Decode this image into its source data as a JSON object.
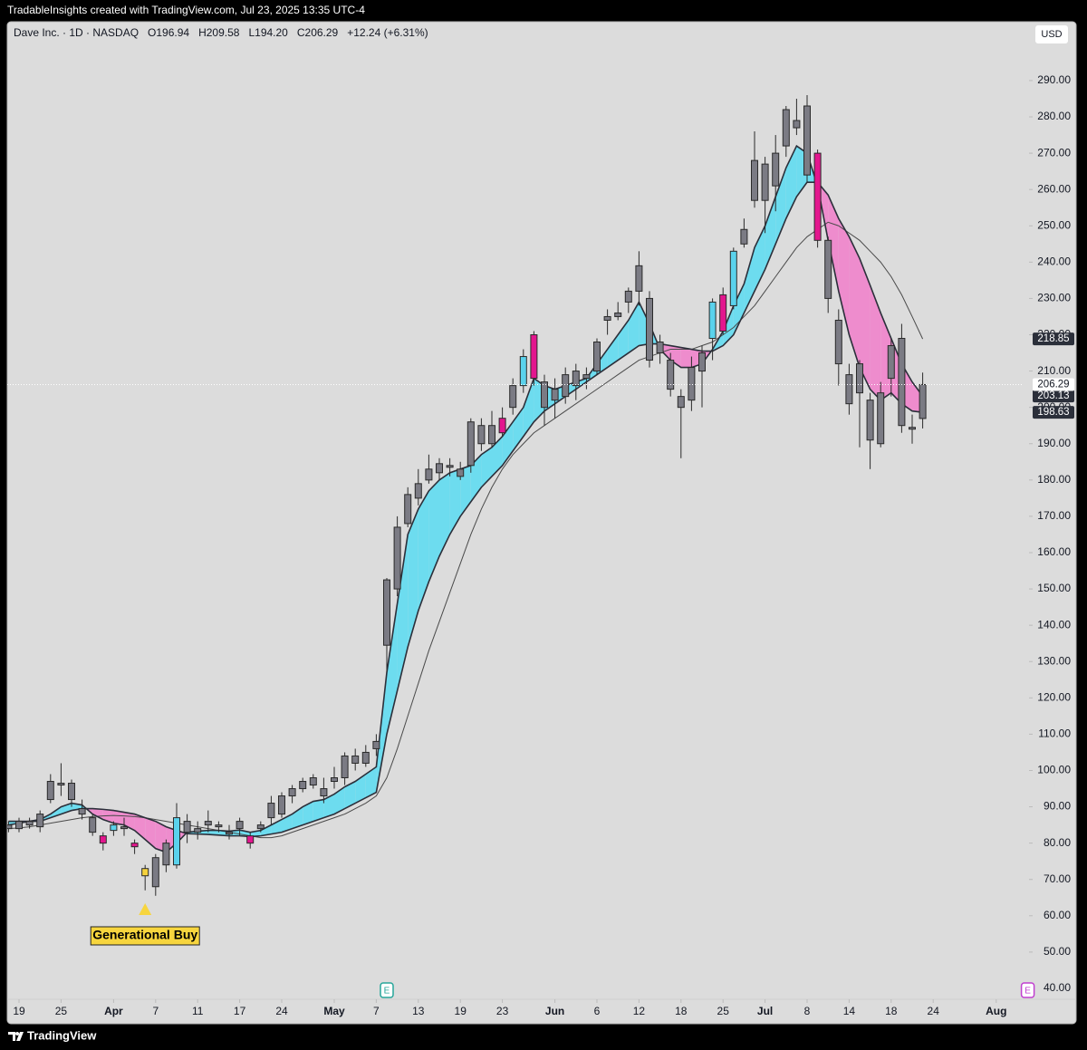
{
  "attribution": "TradableInsights created with TradingView.com, Jul 23, 2025 13:35 UTC-4",
  "brand": "TradingView",
  "currency": "USD",
  "legend": {
    "symbol": "Dave Inc. · 1D · NASDAQ",
    "items": [
      "O196.94",
      "H209.58",
      "L194.20",
      "C206.29",
      "+12.24 (+6.31%)"
    ]
  },
  "chart_data": {
    "type": "candlestick",
    "categories": [
      "Mar 18",
      "Mar 19",
      "Mar 20",
      "Mar 21",
      "Mar 24",
      "Mar 25",
      "Mar 26",
      "Mar 27",
      "Mar 28",
      "Mar 31",
      "Apr 1",
      "Apr 2",
      "Apr 3",
      "Apr 4",
      "Apr 7",
      "Apr 8",
      "Apr 9",
      "Apr 10",
      "Apr 11",
      "Apr 14",
      "Apr 15",
      "Apr 16",
      "Apr 17",
      "Apr 21",
      "Apr 22",
      "Apr 23",
      "Apr 24",
      "Apr 25",
      "Apr 28",
      "Apr 29",
      "Apr 30",
      "May 1",
      "May 2",
      "May 5",
      "May 6",
      "May 7",
      "May 8",
      "May 9",
      "May 12",
      "May 13",
      "May 14",
      "May 15",
      "May 16",
      "May 19",
      "May 20",
      "May 21",
      "May 22",
      "May 23",
      "May 27",
      "May 28",
      "May 29",
      "May 30",
      "Jun 2",
      "Jun 3",
      "Jun 4",
      "Jun 5",
      "Jun 6",
      "Jun 9",
      "Jun 10",
      "Jun 11",
      "Jun 12",
      "Jun 13",
      "Jun 16",
      "Jun 17",
      "Jun 18",
      "Jun 20",
      "Jun 23",
      "Jun 24",
      "Jun 25",
      "Jun 26",
      "Jun 27",
      "Jun 30",
      "Jul 1",
      "Jul 2",
      "Jul 3",
      "Jul 7",
      "Jul 8",
      "Jul 9",
      "Jul 10",
      "Jul 11",
      "Jul 14",
      "Jul 15",
      "Jul 16",
      "Jul 17",
      "Jul 18",
      "Jul 21",
      "Jul 22",
      "Jul 23"
    ],
    "open": [
      85,
      84,
      85,
      84.5,
      92,
      96,
      96.5,
      89.5,
      87,
      82,
      83.5,
      84,
      80,
      73,
      68,
      80,
      74,
      86,
      83,
      85,
      84.5,
      83,
      84,
      82,
      84,
      87,
      88,
      93,
      95,
      96,
      95,
      97,
      98,
      104,
      102,
      106,
      134.5,
      150,
      168,
      179,
      180,
      182,
      184,
      181,
      184,
      195,
      190,
      193,
      200,
      206,
      208,
      207,
      202,
      203,
      206,
      209,
      210,
      224,
      225,
      229,
      232,
      230,
      215,
      213,
      203,
      202,
      210,
      219,
      221,
      228,
      245,
      257,
      267,
      261,
      272,
      279,
      283,
      270,
      246,
      224,
      209,
      204,
      202,
      190,
      208,
      219,
      194.5,
      196.94
    ],
    "high": [
      86,
      87,
      87,
      89,
      99,
      102,
      97.5,
      92,
      88,
      83,
      86,
      87,
      81,
      74,
      77,
      81,
      91,
      88,
      86,
      89,
      86,
      85,
      87,
      83,
      86,
      93,
      94,
      96,
      98,
      99,
      98,
      101,
      105,
      106,
      107,
      110,
      153,
      170,
      178,
      183,
      187,
      186,
      186,
      185,
      197,
      197,
      199,
      200,
      208,
      216,
      221,
      209,
      208,
      211,
      212,
      211,
      219,
      227,
      229,
      233,
      243,
      232,
      220,
      215,
      205,
      214,
      217,
      230,
      233,
      244,
      252,
      276,
      269,
      275,
      283,
      285,
      286,
      271,
      247,
      227,
      212,
      213,
      204,
      207,
      219,
      223,
      198,
      209.58
    ],
    "low": [
      83,
      83,
      84,
      83,
      91,
      93,
      90,
      86.5,
      82,
      78,
      82,
      82,
      77,
      67,
      65.5,
      72,
      73,
      80,
      81,
      83,
      83,
      81,
      82,
      78.5,
      83,
      85,
      87,
      91,
      94,
      95,
      91,
      95,
      96,
      100,
      101,
      104,
      127,
      148,
      167,
      173,
      179,
      180,
      181,
      180,
      182,
      188,
      189,
      192,
      198,
      204,
      206,
      195,
      197,
      201,
      202,
      205,
      209,
      220,
      224,
      226,
      228,
      211,
      212,
      203,
      186,
      199,
      200,
      213,
      220,
      227,
      244,
      255,
      248,
      254,
      269,
      275,
      262,
      244,
      226,
      206,
      198,
      189,
      183,
      189,
      203,
      193,
      190,
      194.2
    ],
    "close": [
      84,
      86,
      86,
      88,
      97,
      96.5,
      92,
      88,
      83,
      80,
      85,
      84.5,
      79,
      71,
      76,
      74,
      87,
      83,
      84,
      86,
      85,
      82.5,
      86,
      80,
      85,
      91,
      93,
      95,
      97,
      98,
      93,
      98,
      104,
      102,
      105,
      108,
      152.5,
      167,
      176,
      175,
      183,
      184.5,
      183.5,
      183,
      196,
      190,
      195,
      197,
      206,
      214,
      220,
      200,
      205,
      209,
      210,
      208,
      218,
      225,
      226,
      232,
      239,
      213,
      218,
      205,
      200,
      211,
      215,
      229,
      231,
      243,
      249,
      268,
      257,
      270,
      282,
      277,
      264,
      246,
      230,
      212,
      201,
      212,
      191,
      204,
      217,
      195,
      194,
      206.29
    ],
    "colors": [
      "#7b7b84",
      "#7b7b84",
      "#7b7b84",
      "#7b7b84",
      "#7b7b84",
      "#7b7b84",
      "#7b7b84",
      "#7b7b84",
      "#7b7b84",
      "#e3168e",
      "#5ad2ec",
      "#7b7b84",
      "#e3168e",
      "#f5d23c",
      "#7b7b84",
      "#7b7b84",
      "#5ad2ec",
      "#7b7b84",
      "#7b7b84",
      "#7b7b84",
      "#7b7b84",
      "#7b7b84",
      "#7b7b84",
      "#e3168e",
      "#7b7b84",
      "#7b7b84",
      "#7b7b84",
      "#7b7b84",
      "#7b7b84",
      "#7b7b84",
      "#7b7b84",
      "#7b7b84",
      "#7b7b84",
      "#7b7b84",
      "#7b7b84",
      "#7b7b84",
      "#7b7b84",
      "#7b7b84",
      "#7b7b84",
      "#7b7b84",
      "#7b7b84",
      "#7b7b84",
      "#7b7b84",
      "#7b7b84",
      "#7b7b84",
      "#7b7b84",
      "#7b7b84",
      "#e3168e",
      "#7b7b84",
      "#5ad2ec",
      "#e3168e",
      "#7b7b84",
      "#7b7b84",
      "#7b7b84",
      "#7b7b84",
      "#7b7b84",
      "#7b7b84",
      "#7b7b84",
      "#7b7b84",
      "#7b7b84",
      "#7b7b84",
      "#7b7b84",
      "#7b7b84",
      "#7b7b84",
      "#7b7b84",
      "#7b7b84",
      "#7b7b84",
      "#5ad2ec",
      "#e3168e",
      "#5ad2ec",
      "#7b7b84",
      "#7b7b84",
      "#7b7b84",
      "#7b7b84",
      "#7b7b84",
      "#7b7b84",
      "#7b7b84",
      "#e3168e",
      "#7b7b84",
      "#7b7b84",
      "#7b7b84",
      "#7b7b84",
      "#7b7b84",
      "#7b7b84",
      "#7b7b84",
      "#7b7b84",
      "#7b7b84",
      "#7b7b84"
    ],
    "ribbon": {
      "up_color": "#6ddcef",
      "down_color": "#ee8ccd",
      "fast": [
        86,
        86,
        86,
        86.5,
        88,
        90,
        91,
        90.5,
        88,
        86.5,
        85.5,
        85,
        83.5,
        81,
        78.5,
        77.5,
        80,
        83,
        83.3,
        83.5,
        83.5,
        83.3,
        83.6,
        83,
        83.5,
        85,
        86.5,
        88,
        90,
        91.5,
        92,
        93.5,
        95.5,
        97,
        99,
        101,
        127,
        146,
        165,
        172,
        177,
        180,
        182,
        183,
        184,
        187,
        189,
        192,
        196,
        200,
        208,
        206,
        205,
        206,
        207,
        208,
        212,
        216,
        220,
        224,
        229,
        223,
        216,
        213,
        211,
        211,
        212,
        216,
        221,
        228,
        234,
        244,
        250,
        258,
        266,
        272,
        270,
        261,
        246,
        232,
        220,
        211,
        205,
        202,
        204,
        201,
        199,
        198.63
      ],
      "slow": [
        85,
        85.5,
        86,
        86,
        87,
        88,
        89,
        89.5,
        89.5,
        89.3,
        89,
        88.5,
        88,
        87,
        86,
        84.5,
        83.5,
        82.6,
        82.5,
        82.4,
        82.2,
        82,
        82,
        81.8,
        82,
        82.5,
        83,
        84,
        85,
        86,
        87,
        88,
        89.5,
        91,
        92.5,
        94,
        110,
        122,
        134,
        144,
        152,
        159,
        165,
        170,
        174,
        178,
        181,
        184,
        188,
        192,
        196,
        199,
        201,
        203,
        205,
        207,
        209,
        211,
        213,
        215,
        217,
        217.5,
        217.5,
        217,
        216.5,
        216,
        215.5,
        215.5,
        217,
        220,
        226,
        232,
        238,
        245,
        252,
        258,
        262,
        262,
        258.5,
        252,
        247,
        241,
        233.6,
        226,
        219,
        212,
        207,
        203.13
      ]
    },
    "ma": {
      "color": "#4a4a4a",
      "values": [
        84,
        84.2,
        84.5,
        85,
        85.5,
        86,
        86.5,
        87,
        87.3,
        87.5,
        87.6,
        87.5,
        87.3,
        87,
        86.5,
        86,
        85.5,
        85,
        84.5,
        84,
        83.5,
        83,
        82.5,
        82,
        81.5,
        81.5,
        82,
        83,
        84,
        85,
        86,
        87,
        88,
        89.5,
        91,
        93,
        98,
        106,
        115,
        124,
        133,
        141,
        149,
        157,
        165,
        172,
        178,
        183,
        187,
        190,
        193,
        195,
        197,
        199,
        201,
        203,
        205,
        207,
        209,
        211,
        213,
        214,
        215,
        216,
        216,
        216,
        217,
        218,
        220,
        222,
        225,
        228,
        232,
        236,
        240,
        244,
        247,
        249,
        251,
        250,
        248,
        246,
        243,
        240,
        236,
        231,
        225,
        218.85
      ]
    },
    "ylim": [
      37,
      306.2
    ],
    "yticks": [
      {
        "value": 40,
        "label": "40.00"
      },
      {
        "value": 50,
        "label": "50.00"
      },
      {
        "value": 60,
        "label": "60.00"
      },
      {
        "value": 70,
        "label": "70.00"
      },
      {
        "value": 80,
        "label": "80.00"
      },
      {
        "value": 90,
        "label": "90.00"
      },
      {
        "value": 100,
        "label": "100.00"
      },
      {
        "value": 110,
        "label": "110.00"
      },
      {
        "value": 120,
        "label": "120.00"
      },
      {
        "value": 130,
        "label": "130.00"
      },
      {
        "value": 140,
        "label": "140.00"
      },
      {
        "value": 150,
        "label": "150.00"
      },
      {
        "value": 160,
        "label": "160.00"
      },
      {
        "value": 170,
        "label": "170.00"
      },
      {
        "value": 180,
        "label": "180.00"
      },
      {
        "value": 190,
        "label": "190.00"
      },
      {
        "value": 200,
        "label": "200.00"
      },
      {
        "value": 210,
        "label": "210.00"
      },
      {
        "value": 220,
        "label": "220.00"
      },
      {
        "value": 230,
        "label": "230.00"
      },
      {
        "value": 240,
        "label": "240.00"
      },
      {
        "value": 250,
        "label": "250.00"
      },
      {
        "value": 260,
        "label": "260.00"
      },
      {
        "value": 270,
        "label": "270.00"
      },
      {
        "value": 280,
        "label": "280.00"
      },
      {
        "value": 290,
        "label": "290.00"
      }
    ],
    "xticks": [
      {
        "value": "Mar 19",
        "label": "19"
      },
      {
        "value": "Mar 25",
        "label": "25"
      },
      {
        "value": "Apr 1",
        "label": "Apr"
      },
      {
        "value": "Apr 7",
        "label": "7"
      },
      {
        "value": "Apr 11",
        "label": "11"
      },
      {
        "value": "Apr 17",
        "label": "17"
      },
      {
        "value": "Apr 24",
        "label": "24"
      },
      {
        "value": "May 1",
        "label": "May"
      },
      {
        "value": "May 7",
        "label": "7"
      },
      {
        "value": "May 13",
        "label": "13"
      },
      {
        "value": "May 19",
        "label": "19"
      },
      {
        "value": "May 23",
        "label": "23"
      },
      {
        "value": "Jun 2",
        "label": "Jun"
      },
      {
        "value": "Jun 6",
        "label": "6"
      },
      {
        "value": "Jun 12",
        "label": "12"
      },
      {
        "value": "Jun 18",
        "label": "18"
      },
      {
        "value": "Jun 25",
        "label": "25"
      },
      {
        "value": "Jul 1",
        "label": "Jul"
      },
      {
        "value": "Jul 8",
        "label": "8"
      },
      {
        "value": "Jul 14",
        "label": "14"
      },
      {
        "value": "Jul 18",
        "label": "18"
      },
      {
        "value": "Jul 24",
        "label": "24"
      },
      {
        "value": "Aug 1",
        "label": "Aug"
      }
    ],
    "annotation": {
      "text": "Generational Buy",
      "date": "Apr 4",
      "color": "#f7d53e"
    },
    "events": [
      {
        "label": "E",
        "date": "May 8",
        "color": "#26a69a"
      },
      {
        "label": "E",
        "date": "Aug 6",
        "color": "#c13fd0"
      }
    ]
  }
}
